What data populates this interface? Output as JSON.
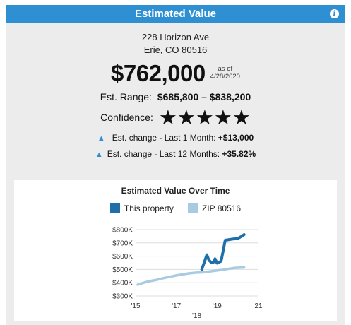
{
  "widget": {
    "title": "Estimated Value",
    "info_icon": "info-icon",
    "address_line1": "228 Horizon Ave",
    "address_line2": "Erie, CO 80516",
    "value": "$762,000",
    "as_of_label": "as of",
    "as_of_date": "4/28/2020",
    "range_label": "Est. Range:",
    "range_value": "$685,800 – $838,200",
    "confidence_label": "Confidence:",
    "confidence_stars": 5,
    "change_1m_label": "Est. change - Last 1 Month:",
    "change_1m_value": "+$13,000",
    "change_12m_label": "Est. change - Last 12 Months:",
    "change_12m_value": "+35.82%",
    "colors": {
      "header": "#2f8fd3",
      "property": "#1f6fa8",
      "zip": "#a8cbe2"
    }
  },
  "chart_data": {
    "type": "line",
    "title": "Estimated Value Over Time",
    "xlabel": "",
    "ylabel": "",
    "x_ticks": [
      "'15",
      "'17",
      "'19",
      "'21"
    ],
    "x_ticks_minor": [
      "'18"
    ],
    "y_ticks": [
      "$300K",
      "$400K",
      "$500K",
      "$600K",
      "$700K",
      "$800K"
    ],
    "xlim": [
      2015,
      2021
    ],
    "ylim": [
      300,
      800
    ],
    "grid": true,
    "legend": "top-center",
    "series": [
      {
        "name": "This property",
        "color": "#1f6fa8",
        "x": [
          2018.25,
          2018.4,
          2018.5,
          2018.6,
          2018.7,
          2018.8,
          2018.9,
          2019.0,
          2019.2,
          2019.4,
          2019.6,
          2019.8,
          2020.0,
          2020.2,
          2020.33
        ],
        "y": [
          500,
          565,
          610,
          570,
          555,
          550,
          580,
          548,
          562,
          720,
          725,
          730,
          732,
          749,
          762
        ]
      },
      {
        "name": "ZIP 80516",
        "color": "#a8cbe2",
        "x": [
          2015.1,
          2015.3,
          2015.5,
          2015.7,
          2016.0,
          2016.3,
          2016.6,
          2017.0,
          2017.3,
          2017.6,
          2018.0,
          2018.3,
          2018.6,
          2019.0,
          2019.3,
          2019.6,
          2019.9,
          2020.2,
          2020.33
        ],
        "y": [
          385,
          395,
          405,
          412,
          420,
          432,
          442,
          455,
          462,
          470,
          476,
          478,
          484,
          492,
          498,
          506,
          512,
          514,
          515
        ]
      }
    ]
  }
}
